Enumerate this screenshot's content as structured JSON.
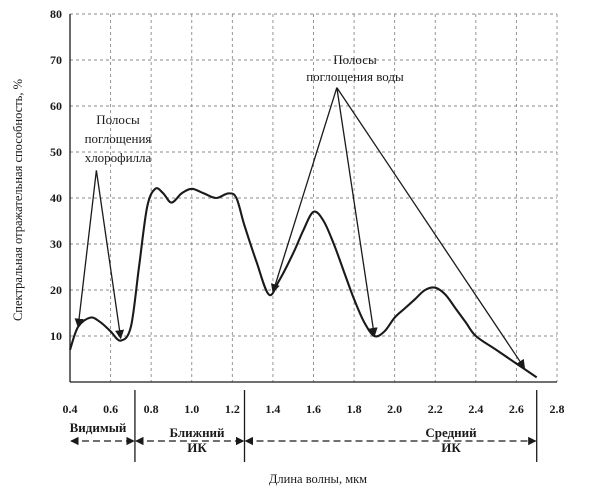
{
  "chart_data": {
    "type": "line",
    "xlabel": "Длина волны, мкм",
    "ylabel": "Спектральная отражательная способность, %",
    "xlim": [
      0.4,
      2.8
    ],
    "ylim": [
      0,
      80
    ],
    "x_ticks": [
      "0.4",
      "0.6",
      "0.8",
      "1.0",
      "1.2",
      "1.4",
      "1.6",
      "1.8",
      "2.0",
      "2.2",
      "2.4",
      "2.6",
      "2.8"
    ],
    "y_ticks": [
      "10",
      "20",
      "30",
      "40",
      "50",
      "60",
      "70",
      "80"
    ],
    "grid": true,
    "series": [
      {
        "x": [
          0.4,
          0.44,
          0.5,
          0.55,
          0.6,
          0.65,
          0.7,
          0.74,
          0.78,
          0.82,
          0.86,
          0.9,
          0.95,
          1.0,
          1.06,
          1.12,
          1.18,
          1.22,
          1.26,
          1.32,
          1.38,
          1.43,
          1.5,
          1.55,
          1.6,
          1.65,
          1.7,
          1.75,
          1.8,
          1.85,
          1.9,
          1.95,
          2.0,
          2.05,
          2.1,
          2.15,
          2.2,
          2.25,
          2.3,
          2.35,
          2.4,
          2.5,
          2.6,
          2.7
        ],
        "values": [
          7,
          12,
          14,
          13,
          11,
          9,
          12,
          25,
          38,
          42,
          41,
          39,
          41,
          42,
          41,
          40,
          41,
          40,
          34,
          26,
          19,
          22,
          28,
          33,
          37,
          35,
          30,
          24,
          18,
          13,
          10,
          11,
          14,
          16,
          18,
          20,
          20.5,
          19,
          16,
          13,
          10,
          7,
          4,
          1
        ]
      }
    ],
    "annotations": [
      {
        "text": [
          "Полосы",
          "поглощения",
          "хлорофилла"
        ]
      },
      {
        "text": [
          "Полосы",
          "поглощения воды"
        ]
      }
    ],
    "bands": [
      {
        "label": [
          "Видимый"
        ]
      },
      {
        "label": [
          "Ближний",
          "ИК"
        ]
      },
      {
        "label": [
          "Средний",
          "ИК"
        ]
      }
    ]
  }
}
